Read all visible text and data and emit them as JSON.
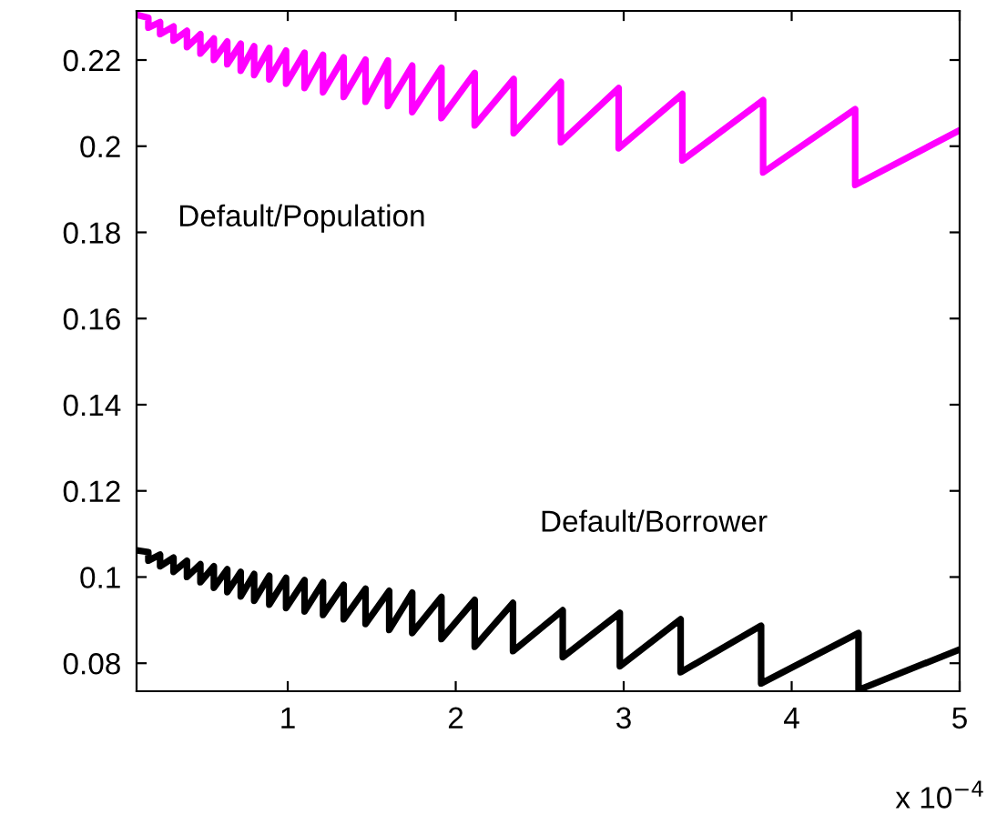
{
  "chart_data": {
    "type": "line",
    "xlim": [
      0.1,
      5
    ],
    "ylim": [
      0.0735,
      0.2314
    ],
    "xticks": [
      1,
      2,
      3,
      4,
      5
    ],
    "yticks": [
      0.08,
      0.1,
      0.12,
      0.14,
      0.16,
      0.18,
      0.2,
      0.22
    ],
    "grid": false,
    "legend": false,
    "marker": "none",
    "line_style": "solid",
    "annotations": [
      "x 10$^{−4}$"
    ],
    "series": [
      {
        "name": "Default/Population",
        "color": "#ff00ff",
        "x": [
          0.1,
          0.17,
          0.17,
          0.24,
          0.24,
          0.32,
          0.32,
          0.4,
          0.4,
          0.48,
          0.48,
          0.56,
          0.56,
          0.64,
          0.64,
          0.72,
          0.72,
          0.8,
          0.8,
          0.89,
          0.89,
          0.99,
          0.99,
          1.1,
          1.1,
          1.21,
          1.21,
          1.333,
          1.333,
          1.463,
          1.463,
          1.596,
          1.596,
          1.741,
          1.741,
          1.915,
          1.915,
          2.113,
          2.113,
          2.345,
          2.345,
          2.626,
          2.626,
          2.97,
          2.97,
          3.349,
          3.349,
          3.83,
          3.83,
          4.378,
          4.378,
          5.0
        ],
        "values": [
          0.2305,
          0.2298,
          0.2275,
          0.2288,
          0.226,
          0.2278,
          0.2245,
          0.2268,
          0.223,
          0.226,
          0.2215,
          0.225,
          0.22,
          0.2243,
          0.219,
          0.2238,
          0.2175,
          0.2232,
          0.2165,
          0.2228,
          0.2155,
          0.2222,
          0.2145,
          0.2217,
          0.2135,
          0.2212,
          0.2125,
          0.2206,
          0.2114,
          0.2201,
          0.2103,
          0.2199,
          0.2093,
          0.2187,
          0.2079,
          0.2182,
          0.2065,
          0.217,
          0.2048,
          0.2156,
          0.203,
          0.2149,
          0.2009,
          0.2135,
          0.1995,
          0.2121,
          0.1967,
          0.2107,
          0.1939,
          0.2086,
          0.191,
          0.2037
        ]
      },
      {
        "name": "Default/Borrower",
        "color": "#000000",
        "x": [
          0.1,
          0.17,
          0.17,
          0.24,
          0.24,
          0.32,
          0.32,
          0.4,
          0.4,
          0.48,
          0.48,
          0.56,
          0.56,
          0.64,
          0.64,
          0.72,
          0.72,
          0.8,
          0.8,
          0.89,
          0.89,
          0.99,
          0.99,
          1.1,
          1.1,
          1.21,
          1.21,
          1.333,
          1.333,
          1.463,
          1.463,
          1.604,
          1.604,
          1.741,
          1.741,
          1.915,
          1.915,
          2.113,
          2.113,
          2.341,
          2.341,
          2.637,
          2.637,
          2.977,
          2.977,
          3.339,
          3.339,
          3.818,
          3.818,
          4.398,
          4.398,
          5.0
        ],
        "values": [
          0.1062,
          0.1058,
          0.1038,
          0.1052,
          0.1025,
          0.1045,
          0.1012,
          0.1038,
          0.1,
          0.103,
          0.0988,
          0.1025,
          0.0975,
          0.1018,
          0.0965,
          0.1012,
          0.0955,
          0.1007,
          0.0945,
          0.1003,
          0.0936,
          0.0998,
          0.0928,
          0.0993,
          0.092,
          0.0988,
          0.0912,
          0.0982,
          0.0902,
          0.0973,
          0.0891,
          0.0968,
          0.0877,
          0.0964,
          0.087,
          0.0954,
          0.0856,
          0.0947,
          0.0838,
          0.094,
          0.0828,
          0.0923,
          0.0814,
          0.0917,
          0.0793,
          0.0902,
          0.0779,
          0.0887,
          0.0753,
          0.087,
          0.0738,
          0.0832
        ]
      }
    ]
  }
}
